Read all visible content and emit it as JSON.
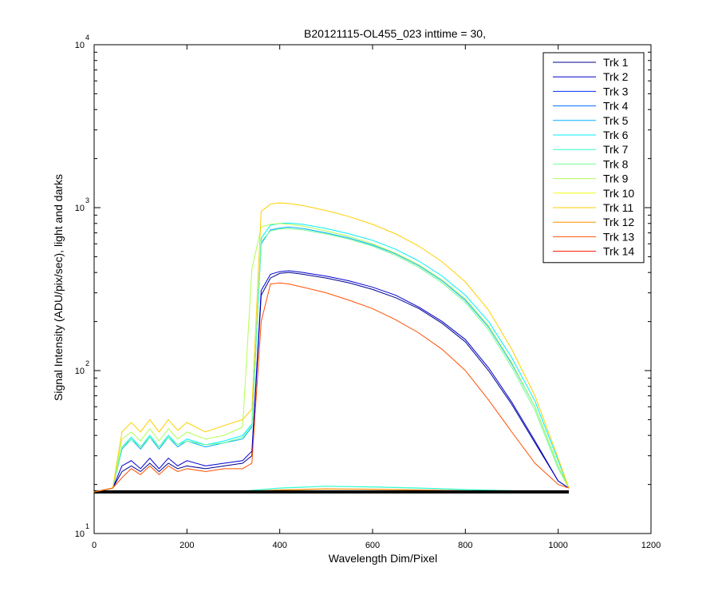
{
  "chart_data": {
    "type": "line",
    "title": "B20121115-OL455_023 inttime = 30,",
    "xlabel": "Wavelength Dim/Pixel",
    "ylabel": "Signal Intensity (ADU/pix/sec), light and darks",
    "xlim": [
      0,
      1200
    ],
    "ylim": [
      10,
      10000
    ],
    "y_scale": "log",
    "x_ticks": [
      "0",
      "200",
      "400",
      "600",
      "800",
      "1000",
      "1200"
    ],
    "y_ticks": [
      {
        "base": "10",
        "exp": "1"
      },
      {
        "base": "10",
        "exp": "2"
      },
      {
        "base": "10",
        "exp": "3"
      },
      {
        "base": "10",
        "exp": "4"
      }
    ],
    "legend_position": "top-right",
    "legend": [
      "Trk 1",
      "Trk 2",
      "Trk 3",
      "Trk 4",
      "Trk 5",
      "Trk 6",
      "Trk 7",
      "Trk 8",
      "Trk 9",
      "Trk 10",
      "Trk 11",
      "Trk 12",
      "Trk 13",
      "Trk 14"
    ],
    "colors": [
      "#00008f",
      "#0000d0",
      "#0030ff",
      "#0070ff",
      "#00afff",
      "#00efff",
      "#30ffcf",
      "#70ff8f",
      "#afff50",
      "#efff10",
      "#ffcf00",
      "#ff8f00",
      "#ff5000",
      "#ff1000"
    ],
    "dark_color": "#000000",
    "series": [
      {
        "name": "Trk 1",
        "color": "#00008f",
        "x": [
          0,
          40,
          60,
          80,
          100,
          120,
          140,
          160,
          180,
          200,
          240,
          280,
          320,
          340,
          360,
          380,
          400,
          420,
          450,
          500,
          550,
          600,
          650,
          700,
          750,
          800,
          850,
          900,
          950,
          1000,
          1023
        ],
        "y": [
          18,
          19,
          24,
          26,
          24,
          27,
          24,
          27,
          25,
          26,
          25,
          26,
          27,
          30,
          290,
          370,
          395,
          400,
          390,
          370,
          345,
          315,
          280,
          240,
          195,
          150,
          100,
          62,
          36,
          21,
          19
        ]
      },
      {
        "name": "Trk 2",
        "color": "#0000d0",
        "x": [
          0,
          40,
          60,
          80,
          100,
          120,
          140,
          160,
          180,
          200,
          240,
          280,
          320,
          340,
          360,
          380,
          400,
          420,
          450,
          500,
          550,
          600,
          650,
          700,
          750,
          800,
          850,
          900,
          950,
          1000,
          1023
        ],
        "y": [
          18,
          19,
          26,
          28,
          25,
          29,
          25,
          29,
          26,
          28,
          26,
          27,
          28,
          32,
          310,
          390,
          405,
          410,
          400,
          380,
          355,
          325,
          290,
          245,
          200,
          155,
          104,
          64,
          37,
          21,
          19
        ]
      },
      {
        "name": "Trk 5",
        "color": "#00afff",
        "x": [
          0,
          40,
          60,
          80,
          100,
          120,
          140,
          160,
          180,
          200,
          240,
          280,
          320,
          340,
          360,
          380,
          400,
          420,
          450,
          500,
          550,
          600,
          650,
          700,
          750,
          800,
          850,
          900,
          950,
          1000,
          1023
        ],
        "y": [
          18,
          19,
          33,
          38,
          33,
          39,
          33,
          39,
          34,
          37,
          34,
          36,
          38,
          45,
          600,
          730,
          750,
          760,
          745,
          700,
          650,
          590,
          520,
          440,
          355,
          270,
          185,
          110,
          60,
          26,
          19
        ]
      },
      {
        "name": "Trk 6",
        "color": "#00efff",
        "x": [
          0,
          40,
          60,
          80,
          100,
          120,
          140,
          160,
          180,
          200,
          240,
          280,
          320,
          340,
          360,
          380,
          400,
          420,
          450,
          500,
          550,
          600,
          650,
          700,
          750,
          800,
          850,
          900,
          950,
          1000,
          1023
        ],
        "y": [
          18,
          19,
          34,
          39,
          34,
          40,
          34,
          40,
          35,
          38,
          35,
          37,
          40,
          47,
          650,
          780,
          800,
          805,
          790,
          745,
          690,
          630,
          555,
          470,
          380,
          290,
          200,
          120,
          65,
          28,
          19
        ]
      },
      {
        "name": "Trk 8",
        "color": "#70ff8f",
        "x": [
          0,
          40,
          60,
          80,
          100,
          120,
          140,
          160,
          180,
          200,
          240,
          280,
          320,
          340,
          360,
          380,
          400,
          420,
          450,
          500,
          550,
          600,
          650,
          700,
          750,
          800,
          850,
          900,
          950,
          1000,
          1023
        ],
        "y": [
          18,
          19,
          34,
          38,
          34,
          39,
          34,
          39,
          35,
          37,
          35,
          36,
          39,
          46,
          620,
          720,
          740,
          745,
          730,
          690,
          640,
          580,
          510,
          430,
          345,
          262,
          178,
          105,
          57,
          25,
          19
        ]
      },
      {
        "name": "Trk 9",
        "color": "#afff50",
        "x": [
          0,
          40,
          60,
          80,
          100,
          120,
          140,
          160,
          180,
          200,
          240,
          280,
          320,
          340,
          360,
          380,
          400,
          420,
          450,
          500,
          550,
          600,
          650,
          700,
          750,
          800,
          850,
          900,
          950,
          1000,
          1023
        ],
        "y": [
          18,
          19,
          38,
          42,
          37,
          44,
          37,
          44,
          38,
          42,
          38,
          40,
          45,
          420,
          760,
          790,
          800,
          790,
          770,
          720,
          665,
          600,
          525,
          445,
          360,
          275,
          188,
          112,
          60,
          26,
          19
        ]
      },
      {
        "name": "Trk 11",
        "color": "#ffcf00",
        "x": [
          0,
          40,
          60,
          80,
          100,
          120,
          140,
          160,
          180,
          200,
          240,
          280,
          320,
          340,
          360,
          380,
          400,
          420,
          450,
          500,
          550,
          600,
          650,
          700,
          750,
          800,
          850,
          900,
          950,
          1000,
          1023
        ],
        "y": [
          18,
          19,
          42,
          48,
          42,
          50,
          42,
          50,
          43,
          48,
          42,
          46,
          50,
          58,
          950,
          1050,
          1070,
          1060,
          1030,
          960,
          880,
          790,
          690,
          580,
          465,
          350,
          235,
          135,
          70,
          29,
          19
        ]
      },
      {
        "name": "Trk 13",
        "color": "#ff5000",
        "x": [
          0,
          40,
          60,
          80,
          100,
          120,
          140,
          160,
          180,
          200,
          240,
          280,
          320,
          340,
          360,
          380,
          400,
          420,
          450,
          500,
          550,
          600,
          650,
          700,
          750,
          800,
          850,
          900,
          950,
          1000,
          1023
        ],
        "y": [
          18,
          19,
          22,
          25,
          23,
          26,
          23,
          26,
          24,
          25,
          24,
          25,
          25,
          27,
          200,
          340,
          345,
          340,
          325,
          300,
          270,
          240,
          205,
          170,
          135,
          100,
          66,
          42,
          27,
          20,
          19
        ]
      }
    ],
    "dark_series": [
      {
        "x": [
          0,
          100,
          200,
          300,
          400,
          500,
          600,
          700,
          800,
          900,
          1000,
          1023
        ],
        "y": [
          18,
          18,
          18,
          18,
          19,
          19.5,
          19.3,
          19,
          18.6,
          18.3,
          18.1,
          18
        ]
      },
      {
        "x": [
          0,
          100,
          200,
          300,
          400,
          500,
          600,
          700,
          800,
          900,
          1000,
          1023
        ],
        "y": [
          18,
          18,
          18,
          18,
          18.5,
          18.8,
          18.7,
          18.5,
          18.3,
          18.1,
          18,
          18
        ]
      },
      {
        "x": [
          0,
          1023
        ],
        "y": [
          18,
          18
        ]
      }
    ]
  }
}
